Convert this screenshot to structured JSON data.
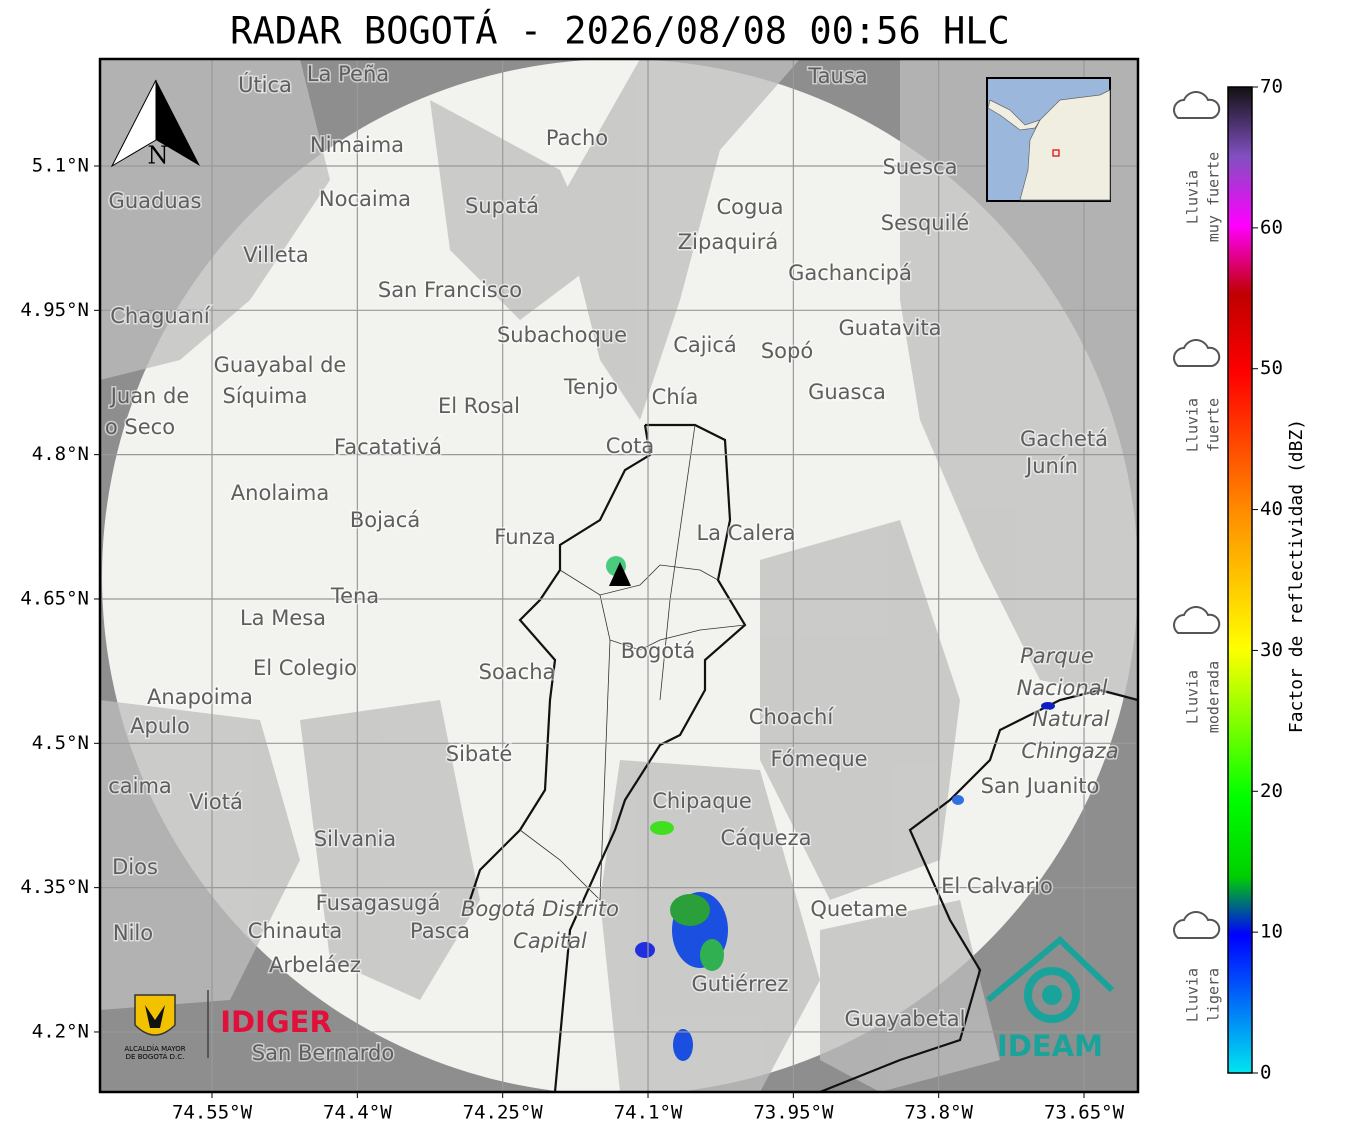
{
  "title": "RADAR BOGOTÁ - 2026/08/08 00:56 HLC",
  "map": {
    "xlim": [
      -74.6656,
      -73.5943
    ],
    "ylim": [
      4.1376,
      5.2112
    ],
    "xticks": [
      {
        "value": -74.55,
        "label": "74.55°W"
      },
      {
        "value": -74.4,
        "label": "74.4°W"
      },
      {
        "value": -74.25,
        "label": "74.25°W"
      },
      {
        "value": -74.1,
        "label": "74.1°W"
      },
      {
        "value": -73.95,
        "label": "73.95°W"
      },
      {
        "value": -73.8,
        "label": "73.8°W"
      },
      {
        "value": -73.65,
        "label": "73.65°W"
      }
    ],
    "yticks": [
      {
        "value": 5.1,
        "label": "5.1°N"
      },
      {
        "value": 4.95,
        "label": "4.95°N"
      },
      {
        "value": 4.8,
        "label": "4.8°N"
      },
      {
        "value": 4.65,
        "label": "4.65°N"
      },
      {
        "value": 4.5,
        "label": "4.5°N"
      },
      {
        "value": 4.35,
        "label": "4.35°N"
      },
      {
        "value": 4.2,
        "label": "4.2°N"
      }
    ],
    "north_label": "N",
    "places": [
      "La Peña",
      "Útica",
      "Tausa",
      "Pacho",
      "Nimaima",
      "Suesca",
      "Guaduas",
      "Nocaima",
      "Supatá",
      "Cogua",
      "Sesquilé",
      "Zipaquirá",
      "Villeta",
      "Gachancipá",
      "San Francisco",
      "Chaguaní",
      "Guatavita",
      "Subachoque",
      "Cajicá",
      "Sopó",
      "Guayabal de",
      "Síquima",
      "Juan de",
      "o Seco",
      "Tenjo",
      "Chía",
      "Guasca",
      "El Rosal",
      "Cota",
      "Facatativá",
      "Gachetá",
      "Junín",
      "Anolaima",
      "Bojacá",
      "La Calera",
      "Funza",
      "Tena",
      "La Mesa",
      "Bogotá",
      "Soacha",
      "Parque",
      "Nacional",
      "Natural",
      "Chingaza",
      "El Colegio",
      "Anapoima",
      "Apulo",
      "Choachí",
      "Sibaté",
      "Fómeque",
      "caima",
      "San Juanito",
      "Viotá",
      "Chipaque",
      "Silvania",
      "Cáqueza",
      "Dios",
      "El Calvario",
      "Fusagasugá",
      "Quetame",
      "Bogotá Distrito",
      "Capital",
      "Nilo",
      "Chinauta",
      "Pasca",
      "Arbeláez",
      "Gutiérrez",
      "Guayabetal",
      "San Bernardo"
    ]
  },
  "colorbar": {
    "label": "Factor de reflectividad (dBZ)",
    "lim": [
      0,
      70
    ],
    "ticks": [
      0,
      10,
      20,
      30,
      40,
      50,
      60,
      70
    ]
  },
  "rain_categories": [
    [
      "Lluvia",
      "muy fuerte"
    ],
    [
      "Lluvia",
      "fuerte"
    ],
    [
      "Lluvia",
      "moderada"
    ],
    [
      "Lluvia",
      "ligera"
    ]
  ],
  "logos": {
    "alcaldia": [
      "ALCALDÍA MAYOR",
      "DE BOGOTÁ D.C."
    ],
    "idiger": "IDIGER",
    "ideam": "IDEAM"
  }
}
